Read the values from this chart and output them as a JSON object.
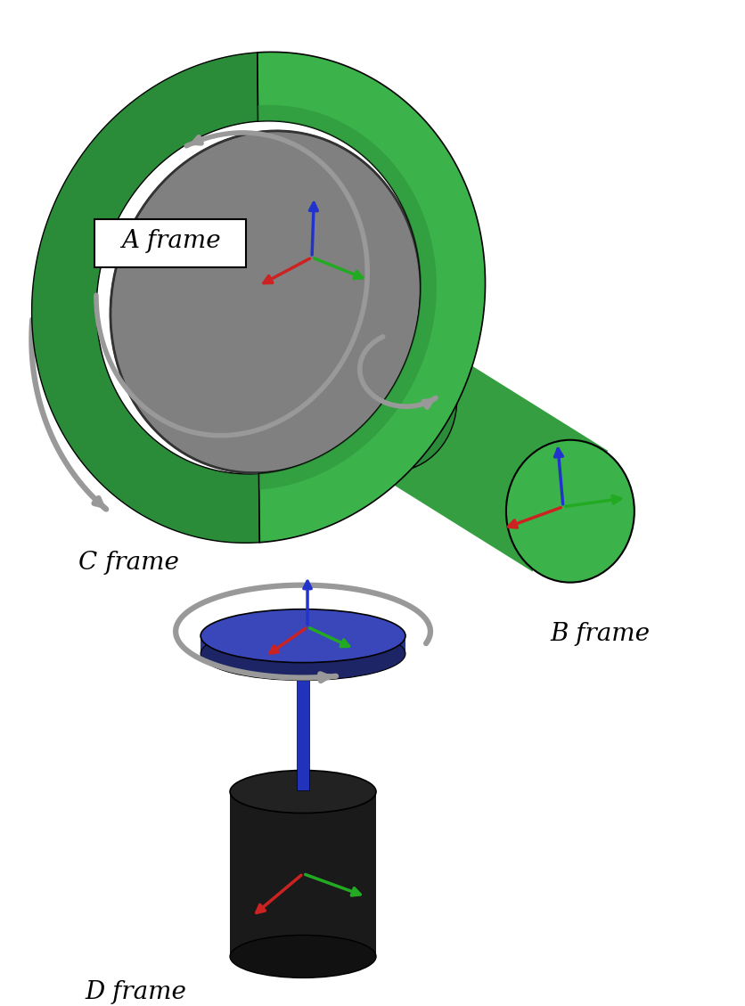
{
  "bg_color": "#ffffff",
  "green_color": "#3cb34a",
  "green_dark": "#2a8c38",
  "green_mid": "#349e40",
  "green_light": "#5fd46e",
  "gray_disk": "#808080",
  "gray_disk_dark": "#606060",
  "gray_disk_edge": "#444444",
  "blue_disk_top": "#3a47bb",
  "blue_disk_side": "#2a3488",
  "blue_disk_bot": "#1e2566",
  "black_cyl": "#1a1a1a",
  "black_cyl_dark": "#0a0a0a",
  "silver": "#999999",
  "silver_dark": "#666666",
  "silver_light": "#bbbbbb",
  "red_arrow": "#cc2222",
  "green_arrow": "#22aa22",
  "blue_arrow": "#2233cc",
  "frame_labels": [
    "A frame",
    "B frame",
    "C frame",
    "D frame"
  ],
  "font_size_frame": 20
}
